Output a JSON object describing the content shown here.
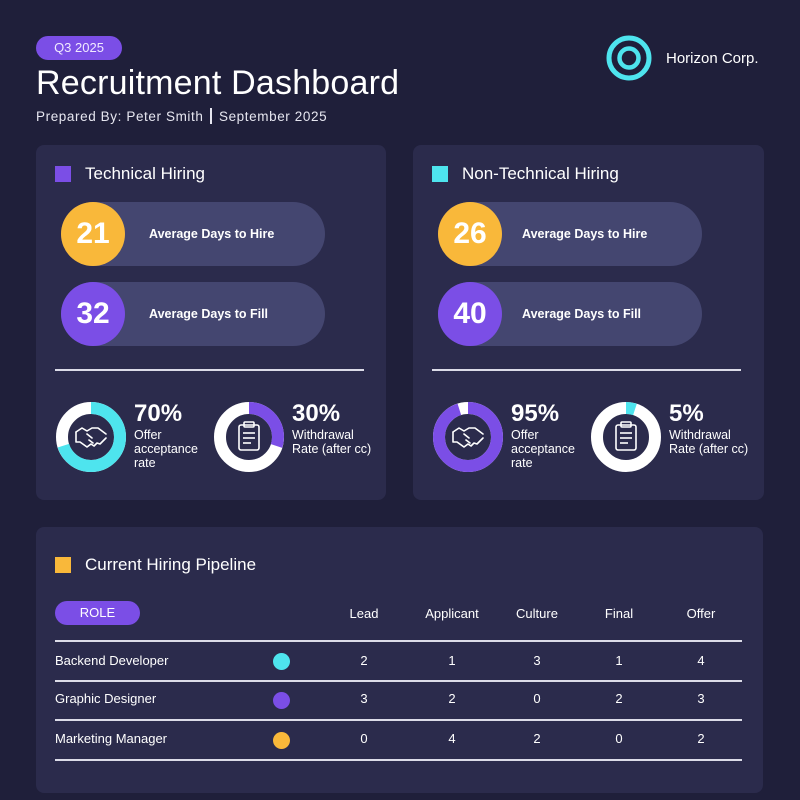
{
  "header": {
    "badge": "Q3 2025",
    "title": "Recruitment Dashboard",
    "prepared_by": "Prepared By: Peter Smith",
    "date": "September 2025",
    "company": "Horizon Corp."
  },
  "colors": {
    "background": "#1f1f3a",
    "card": "#2b2b4c",
    "purple": "#7b4ee6",
    "cyan": "#4ee4ee",
    "yellow": "#f9b83a",
    "pill": "#444670"
  },
  "technical": {
    "heading": "Technical Hiring",
    "days_to_hire": "21",
    "days_to_hire_label": "Average Days to Hire",
    "days_to_fill": "32",
    "days_to_fill_label": "Average Days to Fill",
    "offer_pct": "70%",
    "offer_value": 70,
    "offer_label": "Offer acceptance rate",
    "withdraw_pct": "30%",
    "withdraw_value": 30,
    "withdraw_label": "Withdrawal Rate (after cc)"
  },
  "non_technical": {
    "heading": "Non-Technical Hiring",
    "days_to_hire": "26",
    "days_to_hire_label": "Average Days to Hire",
    "days_to_fill": "40",
    "days_to_fill_label": "Average Days to Fill",
    "offer_pct": "95%",
    "offer_value": 95,
    "offer_label": "Offer acceptance rate",
    "withdraw_pct": "5%",
    "withdraw_value": 5,
    "withdraw_label": "Withdrawal Rate (after cc)"
  },
  "pipeline": {
    "heading": "Current Hiring Pipeline",
    "role_label": "ROLE",
    "columns": [
      "Lead",
      "Applicant",
      "Culture",
      "Final",
      "Offer"
    ],
    "rows": [
      {
        "role": "Backend Developer",
        "dot": "#4ee4ee",
        "values": [
          "2",
          "1",
          "3",
          "1",
          "4"
        ]
      },
      {
        "role": "Graphic Designer",
        "dot": "#7b4ee6",
        "values": [
          "3",
          "2",
          "0",
          "2",
          "3"
        ]
      },
      {
        "role": "Marketing Manager",
        "dot": "#f9b83a",
        "values": [
          "0",
          "4",
          "2",
          "0",
          "2"
        ]
      }
    ]
  },
  "icons": {
    "logo": "concentric-circles-logo",
    "offer": "handshake-icon",
    "withdraw": "clipboard-icon"
  }
}
